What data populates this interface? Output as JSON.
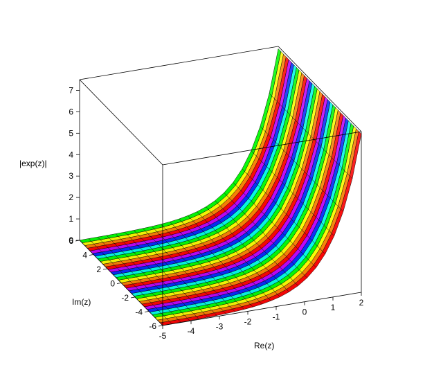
{
  "chart_data": {
    "type": "surface",
    "function": "|exp(z)|",
    "xlabel": "Re(z)",
    "ylabel": "Im(z)",
    "zlabel": "|exp(z)|",
    "x_range": [
      -5,
      2
    ],
    "y_range": [
      -6,
      6
    ],
    "z_range": [
      0,
      7.389
    ],
    "x_ticks": [
      "-5",
      "-4",
      "-3",
      "-2",
      "-1",
      "0",
      "1",
      "2"
    ],
    "y_ticks": [
      "-6",
      "-4",
      "-2",
      "0",
      "2",
      "4",
      "6"
    ],
    "z_ticks": [
      "0",
      "1",
      "2",
      "3",
      "4",
      "5",
      "6",
      "7"
    ],
    "colormap": "hue-rainbow",
    "grid": true,
    "x": [
      -5,
      -4.5,
      -4,
      -3.5,
      -3,
      -2.5,
      -2,
      -1.5,
      -1,
      -0.5,
      0,
      0.5,
      1,
      1.5,
      2
    ],
    "z_values": [
      0.0067,
      0.0111,
      0.0183,
      0.0302,
      0.0498,
      0.0821,
      0.1353,
      0.2231,
      0.3679,
      0.6065,
      1.0,
      1.6487,
      2.7183,
      4.4817,
      7.3891
    ]
  }
}
